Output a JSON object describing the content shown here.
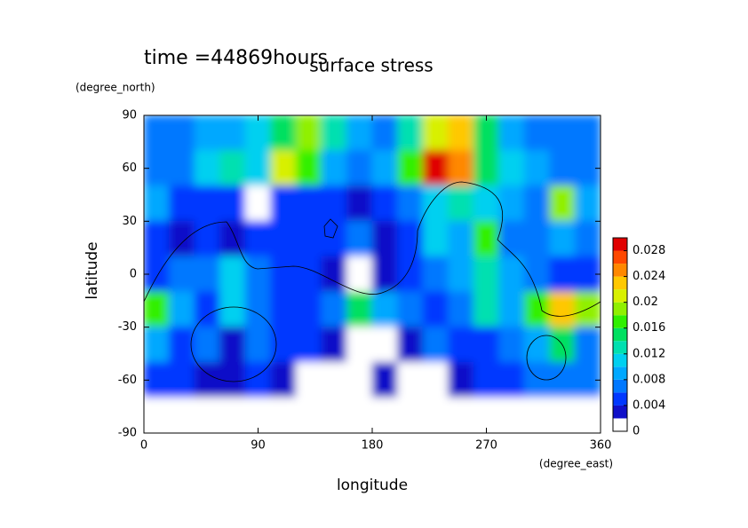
{
  "chart_data": {
    "type": "contour",
    "title": "surface stress",
    "subtitle": "time =44869hours",
    "x_label": "longitude",
    "y_label": "latitude",
    "x_unit": "(degree_east)",
    "y_unit": "(degree_north)",
    "x": [
      10,
      30,
      50,
      70,
      90,
      110,
      130,
      150,
      170,
      190,
      210,
      230,
      250,
      270,
      290,
      310,
      330,
      350
    ],
    "y": [
      80,
      60,
      40,
      20,
      0,
      -20,
      -40,
      -60,
      -80
    ],
    "z": [
      [
        0.006,
        0.006,
        0.008,
        0.008,
        0.01,
        0.014,
        0.018,
        0.012,
        0.008,
        0.006,
        0.012,
        0.02,
        0.022,
        0.014,
        0.008,
        0.006,
        0.006,
        0.006
      ],
      [
        0.006,
        0.006,
        0.01,
        0.012,
        0.01,
        0.02,
        0.016,
        0.008,
        0.006,
        0.008,
        0.016,
        0.028,
        0.024,
        0.014,
        0.01,
        0.008,
        0.006,
        0.006
      ],
      [
        0.008,
        0.004,
        0.004,
        0.004,
        0,
        0.004,
        0.004,
        0.004,
        0.002,
        0.004,
        0.006,
        0.01,
        0.012,
        0.01,
        0.008,
        0.006,
        0.018,
        0.008
      ],
      [
        0.004,
        0.002,
        0.004,
        0.002,
        0.004,
        0.004,
        0.004,
        0.004,
        0.006,
        0.002,
        0.004,
        0.01,
        0.008,
        0.016,
        0.006,
        0.006,
        0.008,
        0.006
      ],
      [
        0.004,
        0.006,
        0.006,
        0.01,
        0.006,
        0.004,
        0.004,
        0.002,
        0,
        0.002,
        0.004,
        0.006,
        0.008,
        0.012,
        0.008,
        0.006,
        0.004,
        0.004
      ],
      [
        0.016,
        0.008,
        0.004,
        0.01,
        0.006,
        0.004,
        0.004,
        0.006,
        0.014,
        0.008,
        0.006,
        0.004,
        0.006,
        0.012,
        0.008,
        0.016,
        0.022,
        0.018
      ],
      [
        0.008,
        0.004,
        0.006,
        0.002,
        0.006,
        0.004,
        0.004,
        0.002,
        0,
        0,
        0.002,
        0.006,
        0.004,
        0.004,
        0.006,
        0.008,
        0.014,
        0.006
      ],
      [
        0.004,
        0.004,
        0.002,
        0.002,
        0.004,
        0.002,
        0,
        0,
        0,
        0.002,
        0,
        0,
        0.002,
        0.004,
        0.004,
        0.006,
        0.006,
        0.006
      ],
      [
        0,
        0,
        0,
        0,
        0,
        0,
        0,
        0,
        0,
        0,
        0,
        0,
        0,
        0,
        0,
        0,
        0,
        0
      ]
    ],
    "xlim": [
      0,
      360
    ],
    "ylim": [
      -90,
      90
    ],
    "xticks": [
      0,
      90,
      180,
      270,
      360
    ],
    "yticks": [
      -90,
      -60,
      -30,
      0,
      30,
      60,
      90
    ],
    "levels": [
      0,
      0.002,
      0.004,
      0.006,
      0.008,
      0.01,
      0.012,
      0.014,
      0.016,
      0.018,
      0.02,
      0.022,
      0.024,
      0.026,
      0.028,
      0.03
    ],
    "colors": [
      "#ffffff",
      "#1010c8",
      "#0038ff",
      "#0078ff",
      "#00a8ff",
      "#00d0f0",
      "#00e0b0",
      "#00e060",
      "#30f000",
      "#90f000",
      "#d8f000",
      "#ffc800",
      "#ff8800",
      "#ff4800",
      "#e00000"
    ],
    "colorbar_lim": [
      0,
      0.03
    ],
    "colorbar_ticks": [
      0,
      0.004,
      0.008,
      0.012,
      0.016,
      0.02,
      0.024,
      0.028
    ]
  }
}
